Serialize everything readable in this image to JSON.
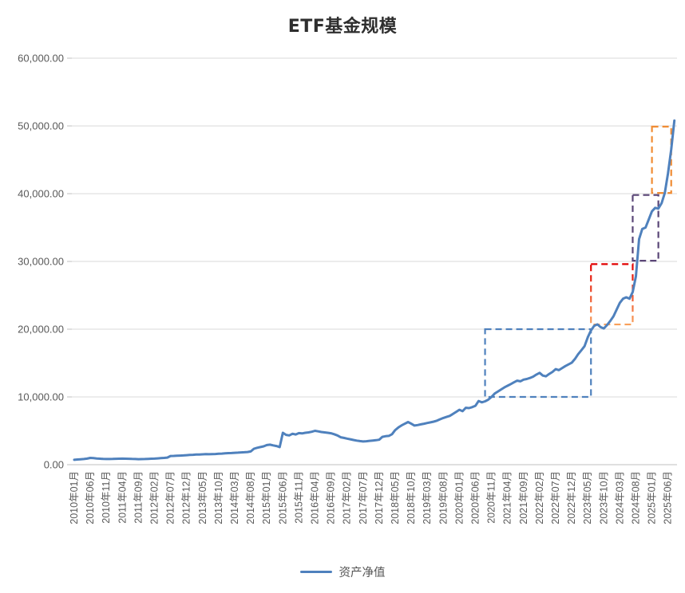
{
  "header": {
    "title": "ETF基金规模"
  },
  "legend": {
    "series_label": "资产净值"
  },
  "colors": {
    "line": "#4F81BD",
    "grid": "#D9D9D9",
    "axis_line": "#BFBFBF",
    "axis_text": "#595959",
    "title_text": "#2E2E2E",
    "box_blue": "#4F81BD",
    "box_red": "#E10000",
    "box_red_fade": "#F9A05A",
    "box_purple": "#5A4677",
    "box_orange": "#F08C33"
  },
  "chart_data": {
    "type": "line",
    "title": "ETF基金规模",
    "xlabel": "",
    "ylabel": "",
    "ylim": [
      0,
      60000
    ],
    "ytick_step": 10000,
    "ytick_labels": [
      "0.00",
      "10,000.00",
      "20,000.00",
      "30,000.00",
      "40,000.00",
      "50,000.00",
      "60,000.00"
    ],
    "grid": "horizontal",
    "legend_position": "bottom",
    "x_start": "2010-01",
    "x_months_total": 188,
    "x_tick_interval_months": 5,
    "x_tick_labels": [
      "2010年01月",
      "2010年06月",
      "2010年11月",
      "2011年04月",
      "2011年09月",
      "2012年02月",
      "2012年07月",
      "2012年12月",
      "2013年05月",
      "2013年10月",
      "2014年03月",
      "2014年08月",
      "2015年01月",
      "2015年06月",
      "2015年11月",
      "2016年04月",
      "2016年09月",
      "2017年02月",
      "2017年07月",
      "2017年12月",
      "2018年05月",
      "2018年10月",
      "2019年03月",
      "2019年08月",
      "2020年01月",
      "2020年06月",
      "2020年11月",
      "2021年04月",
      "2021年09月",
      "2022年02月",
      "2022年07月",
      "2022年12月",
      "2023年05月",
      "2023年10月",
      "2024年03月",
      "2024年08月",
      "2025年01月",
      "2025年06月"
    ],
    "series": [
      {
        "name": "资产净值",
        "color": "#4F81BD",
        "values": [
          720,
          760,
          800,
          840,
          900,
          1000,
          960,
          920,
          880,
          850,
          830,
          840,
          850,
          870,
          880,
          890,
          880,
          870,
          850,
          830,
          810,
          820,
          840,
          860,
          880,
          900,
          930,
          960,
          1000,
          1050,
          1280,
          1300,
          1320,
          1340,
          1370,
          1400,
          1430,
          1460,
          1490,
          1510,
          1530,
          1550,
          1540,
          1560,
          1580,
          1610,
          1640,
          1670,
          1700,
          1720,
          1750,
          1780,
          1810,
          1840,
          1870,
          1950,
          2350,
          2500,
          2600,
          2700,
          2900,
          2950,
          2850,
          2750,
          2600,
          4700,
          4400,
          4320,
          4560,
          4460,
          4660,
          4610,
          4700,
          4760,
          4860,
          5000,
          4920,
          4820,
          4760,
          4700,
          4640,
          4500,
          4320,
          4050,
          3950,
          3850,
          3750,
          3650,
          3550,
          3480,
          3420,
          3460,
          3520,
          3560,
          3610,
          3680,
          4100,
          4200,
          4250,
          4500,
          5100,
          5500,
          5800,
          6050,
          6300,
          6050,
          5780,
          5850,
          5950,
          6050,
          6150,
          6250,
          6350,
          6500,
          6700,
          6900,
          7050,
          7200,
          7500,
          7800,
          8100,
          7900,
          8400,
          8350,
          8500,
          8700,
          9400,
          9200,
          9350,
          9600,
          10000,
          10500,
          10800,
          11100,
          11400,
          11650,
          11900,
          12150,
          12400,
          12300,
          12550,
          12650,
          12800,
          13000,
          13300,
          13550,
          13150,
          13050,
          13400,
          13700,
          14100,
          13950,
          14250,
          14550,
          14800,
          15050,
          15600,
          16300,
          16900,
          17500,
          18800,
          19800,
          20500,
          20700,
          20300,
          20100,
          20600,
          21200,
          21900,
          22900,
          23900,
          24500,
          24700,
          24500,
          25500,
          27800,
          33300,
          34800,
          35000,
          36200,
          37400,
          37900,
          37800,
          38600,
          40100,
          43000,
          46500,
          50800
        ]
      }
    ],
    "annotations": [
      {
        "type": "dashed-box",
        "name": "stage-box-1",
        "x1": "2020-09",
        "x2": "2023-06",
        "y1": 10000,
        "y2": 20000,
        "color": "#4F81BD"
      },
      {
        "type": "dashed-box",
        "name": "stage-box-2",
        "x1": "2023-06",
        "x2": "2024-07",
        "y1": 20700,
        "y2": 29600,
        "color": "#E10000",
        "color2": "#F9A05A"
      },
      {
        "type": "dashed-box",
        "name": "stage-box-3",
        "x1": "2024-07",
        "x2": "2025-03",
        "y1": 30100,
        "y2": 39800,
        "color": "#5A4677"
      },
      {
        "type": "dashed-box",
        "name": "stage-box-4",
        "x1": "2025-01",
        "x2": "2025-07",
        "y1": 40100,
        "y2": 49900,
        "color": "#F08C33"
      }
    ]
  }
}
